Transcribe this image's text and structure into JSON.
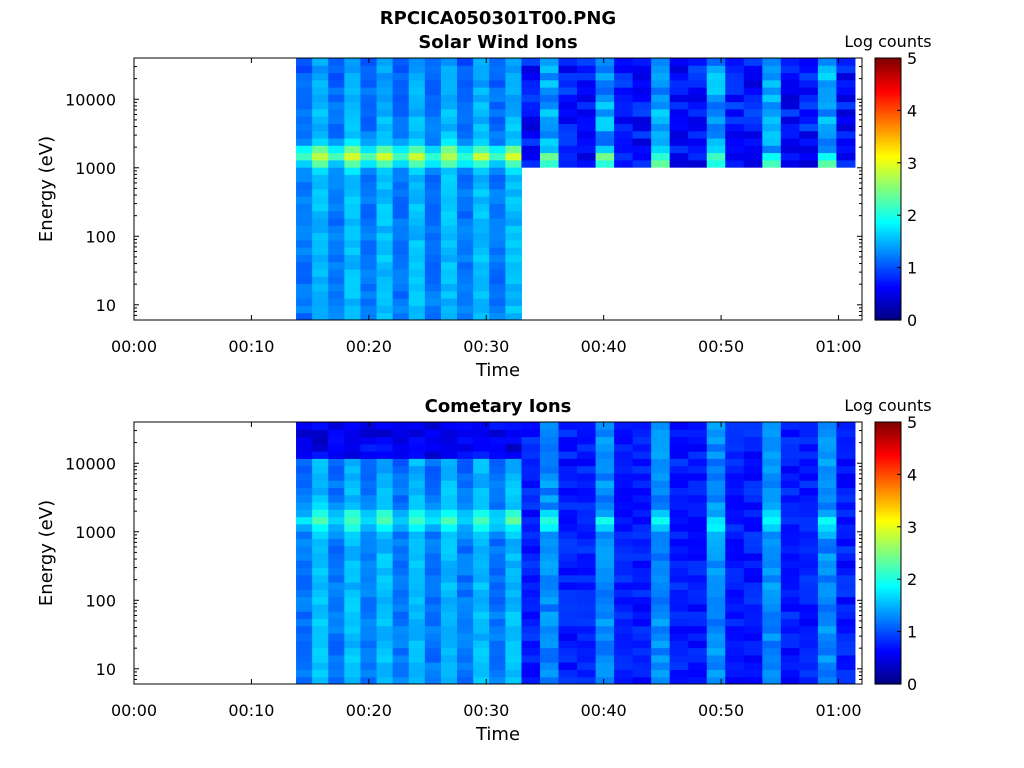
{
  "figure": {
    "title": "RPCICA050301T00.PNG",
    "colorbar_label": "Log counts"
  },
  "chart_data": [
    {
      "type": "heatmap",
      "title": "Solar Wind Ions",
      "xlabel": "Time",
      "ylabel": "Energy (eV)",
      "x_ticks": [
        "00:00",
        "00:10",
        "00:20",
        "00:30",
        "00:40",
        "00:50",
        "01:00"
      ],
      "y_ticks": [
        "10",
        "100",
        "1000",
        "10000"
      ],
      "y_scale": "log",
      "ylim": [
        6,
        40000
      ],
      "xlim_minutes": [
        0,
        62
      ],
      "data_start_minutes": 13.8,
      "mode_switch_minutes": 33,
      "colorbar": {
        "label": "Log counts",
        "range": [
          0,
          5
        ],
        "ticks": [
          "0",
          "1",
          "2",
          "3",
          "4",
          "5"
        ]
      },
      "description_levels": {
        "phase1_peak_energy_eV": 1500,
        "phase1_peak_log_counts": 2.6,
        "phase2_min_energy_eV": 1100,
        "phase2_peak_log_counts": 2.2
      }
    },
    {
      "type": "heatmap",
      "title": "Cometary Ions",
      "xlabel": "Time",
      "ylabel": "Energy (eV)",
      "x_ticks": [
        "00:00",
        "00:10",
        "00:20",
        "00:30",
        "00:40",
        "00:50",
        "01:00"
      ],
      "y_ticks": [
        "10",
        "100",
        "1000",
        "10000"
      ],
      "y_scale": "log",
      "ylim": [
        6,
        40000
      ],
      "xlim_minutes": [
        0,
        62
      ],
      "data_start_minutes": 13.8,
      "mode_switch_minutes": 33,
      "colorbar": {
        "label": "Log counts",
        "range": [
          0,
          5
        ],
        "ticks": [
          "0",
          "1",
          "2",
          "3",
          "4",
          "5"
        ]
      },
      "description_levels": {
        "phase1_peak_energy_eV": 1500,
        "phase1_peak_log_counts": 1.9,
        "phase2_peak_log_counts": 1.9
      }
    }
  ]
}
